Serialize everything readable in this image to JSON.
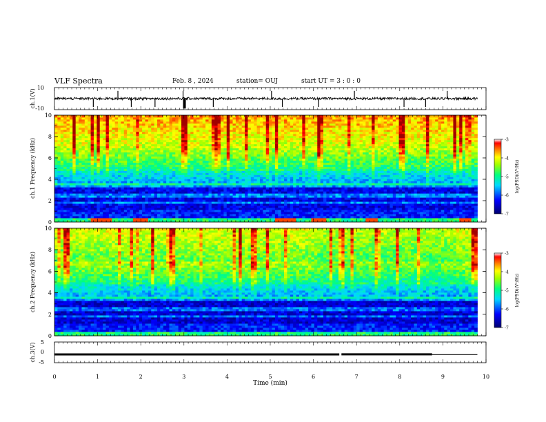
{
  "header": {
    "title": "VLF Spectra",
    "date": "Feb. 8 , 2024",
    "station": "station= OUJ",
    "start": "start UT =  3 : 0 : 0"
  },
  "chart_data": [
    {
      "type": "line",
      "panel": "ch1-waveform",
      "ylabel": "ch.1(V)",
      "ylim": [
        -10,
        10
      ],
      "yticks": [
        "10",
        "-10"
      ],
      "baseline": 0,
      "spikes_min": [
        0.9,
        1.47,
        1.78,
        2.33,
        2.98,
        3.02,
        3.68,
        5.03,
        5.28,
        6.12,
        6.95,
        8.1,
        8.6,
        9.1
      ]
    },
    {
      "type": "heatmap",
      "panel": "ch1-spectrogram",
      "ylabel": "ch.1 Frequency (kHz)",
      "ylim": [
        0,
        10
      ],
      "yticks": [
        "0",
        "2",
        "4",
        "6",
        "8",
        "10"
      ],
      "colorbar": {
        "label": "log(PSD)(V²/Hz)",
        "range": [
          -7,
          -3
        ],
        "ticks": [
          "-3",
          "-4",
          "-5",
          "-6",
          "-7"
        ]
      }
    },
    {
      "type": "heatmap",
      "panel": "ch2-spectrogram",
      "ylabel": "ch.2 Frequency (kHz)",
      "ylim": [
        0,
        10
      ],
      "yticks": [
        "0",
        "2",
        "4",
        "6",
        "8",
        "10"
      ],
      "colorbar": {
        "label": "log(PSD)(V²/Hz)",
        "range": [
          -7,
          -3
        ],
        "ticks": [
          "-3",
          "-4",
          "-5",
          "-6",
          "-7"
        ]
      }
    },
    {
      "type": "line",
      "panel": "ch3-trace",
      "ylabel": "ch.3(V)",
      "ylim": [
        -5,
        5
      ],
      "yticks": [
        "5",
        "0",
        "-5"
      ],
      "segments": [
        {
          "x": [
            0,
            6.6
          ],
          "y": -1.0
        },
        {
          "x": [
            6.65,
            8.75
          ],
          "y": -0.95
        },
        {
          "x": [
            8.75,
            9.8
          ],
          "y": -1.1
        }
      ]
    }
  ],
  "xaxis": {
    "label": "Time (min)",
    "xlim": [
      0,
      10
    ],
    "ticks": [
      "0",
      "1",
      "2",
      "3",
      "4",
      "5",
      "6",
      "7",
      "8",
      "9",
      "10"
    ],
    "data_end_min": 9.8
  },
  "colors": {
    "scale": [
      "#00007a",
      "#0000ff",
      "#00d0ff",
      "#00ff80",
      "#80ff00",
      "#ffff00",
      "#ff8000",
      "#ff0000",
      "#a00000"
    ]
  }
}
